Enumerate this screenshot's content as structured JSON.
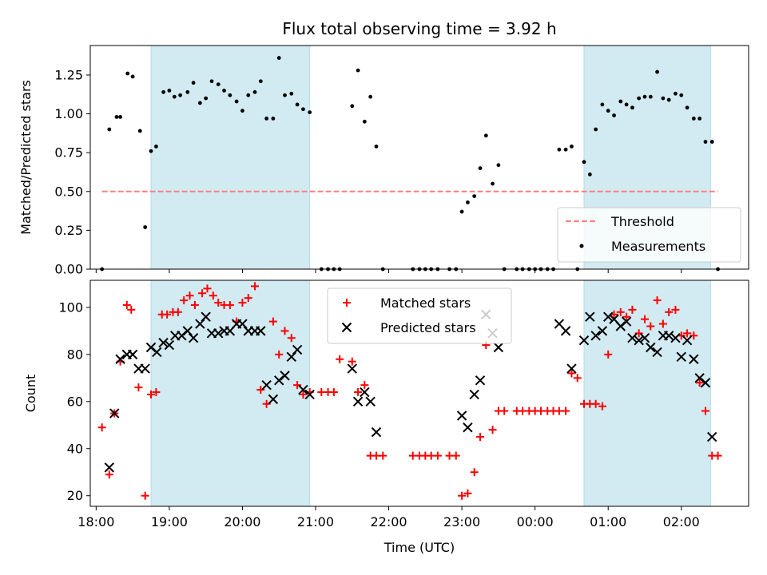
{
  "chart_data": [
    {
      "type": "scatter",
      "title": "Flux total observing time = 3.92 h",
      "xlabel": "",
      "ylabel": "Matched/Predicted stars",
      "x_range_hours": [
        17.92,
        26.92
      ],
      "ylim": [
        0,
        1.44
      ],
      "yticks": [
        0.0,
        0.25,
        0.5,
        0.75,
        1.0,
        1.25
      ],
      "ytick_labels": [
        "0.00",
        "0.25",
        "0.50",
        "0.75",
        "1.00",
        "1.25"
      ],
      "grid": false,
      "legend_position": "lower-right",
      "shaded_intervals": [
        [
          18.75,
          20.92
        ],
        [
          24.67,
          26.4
        ]
      ],
      "shade_color": "#add8e6",
      "threshold": {
        "name": "Threshold",
        "y": 0.5,
        "x_start": 18.08,
        "x_end": 26.5,
        "color": "#ff7f7f"
      },
      "series": [
        {
          "name": "Measurements",
          "marker": "dot",
          "color": "#000000",
          "x": [
            18.08,
            18.18,
            18.28,
            18.33,
            18.43,
            18.5,
            18.6,
            18.67,
            18.75,
            18.82,
            18.92,
            19.0,
            19.07,
            19.15,
            19.25,
            19.33,
            19.42,
            19.5,
            19.58,
            19.67,
            19.75,
            19.83,
            19.92,
            20.0,
            20.08,
            20.17,
            20.25,
            20.33,
            20.42,
            20.5,
            20.58,
            20.67,
            20.75,
            20.83,
            20.92,
            21.08,
            21.17,
            21.25,
            21.33,
            21.5,
            21.58,
            21.67,
            21.75,
            21.83,
            21.92,
            22.33,
            22.42,
            22.5,
            22.58,
            22.67,
            22.83,
            22.92,
            23.0,
            23.08,
            23.17,
            23.25,
            23.33,
            23.42,
            23.5,
            23.58,
            23.75,
            23.83,
            23.92,
            24.0,
            24.08,
            24.17,
            24.25,
            24.33,
            24.42,
            24.5,
            24.58,
            24.67,
            24.75,
            24.83,
            24.92,
            25.0,
            25.08,
            25.17,
            25.25,
            25.33,
            25.42,
            25.5,
            25.58,
            25.67,
            25.75,
            25.83,
            25.92,
            26.0,
            26.08,
            26.17,
            26.25,
            26.33,
            26.42,
            26.5
          ],
          "y": [
            0.0,
            0.9,
            0.98,
            0.98,
            1.26,
            1.24,
            0.89,
            0.27,
            0.76,
            0.79,
            1.14,
            1.15,
            1.11,
            1.12,
            1.14,
            1.2,
            1.07,
            1.1,
            1.21,
            1.19,
            1.15,
            1.12,
            1.08,
            1.02,
            1.12,
            1.14,
            1.21,
            0.97,
            0.97,
            1.36,
            1.12,
            1.13,
            1.06,
            1.03,
            1.01,
            0.0,
            0.0,
            0.0,
            0.0,
            1.05,
            1.28,
            0.95,
            1.11,
            0.79,
            0.0,
            0.0,
            0.0,
            0.0,
            0.0,
            0.0,
            0.0,
            0.0,
            0.37,
            0.43,
            0.47,
            0.65,
            0.86,
            0.55,
            0.67,
            0.0,
            0.0,
            0.0,
            0.0,
            0.0,
            0.0,
            0.0,
            0.0,
            0.77,
            0.77,
            0.79,
            0.0,
            0.69,
            0.61,
            0.9,
            1.06,
            1.02,
            0.99,
            1.08,
            1.06,
            1.04,
            1.1,
            1.11,
            1.11,
            1.27,
            1.1,
            1.09,
            1.13,
            1.12,
            1.04,
            0.97,
            0.97,
            0.82,
            0.82,
            0.0
          ]
        }
      ]
    },
    {
      "type": "scatter",
      "title": "",
      "xlabel": "Time (UTC)",
      "ylabel": "Count",
      "x_range_hours": [
        17.92,
        26.92
      ],
      "ylim": [
        15.5,
        111.5
      ],
      "yticks": [
        20,
        40,
        60,
        80,
        100
      ],
      "ytick_labels": [
        "20",
        "40",
        "60",
        "80",
        "100"
      ],
      "xticks_hours": [
        18,
        19,
        20,
        21,
        22,
        23,
        24,
        25,
        26
      ],
      "xtick_labels": [
        "18:00",
        "19:00",
        "20:00",
        "21:00",
        "22:00",
        "23:00",
        "00:00",
        "01:00",
        "02:00"
      ],
      "grid": false,
      "legend_position": "top-center",
      "shaded_intervals": [
        [
          18.75,
          20.92
        ],
        [
          24.67,
          26.4
        ]
      ],
      "shade_color": "#add8e6",
      "series": [
        {
          "name": "Matched stars",
          "marker": "plus",
          "color": "#ff0000",
          "x": [
            18.08,
            18.18,
            18.25,
            18.33,
            18.42,
            18.48,
            18.58,
            18.67,
            18.75,
            18.82,
            18.9,
            18.97,
            19.05,
            19.12,
            19.2,
            19.28,
            19.35,
            19.45,
            19.52,
            19.6,
            19.67,
            19.75,
            19.83,
            19.92,
            20.0,
            20.08,
            20.17,
            20.25,
            20.33,
            20.42,
            20.5,
            20.58,
            20.67,
            20.75,
            20.83,
            20.92,
            21.08,
            21.17,
            21.25,
            21.33,
            21.5,
            21.58,
            21.67,
            21.75,
            21.83,
            21.92,
            22.33,
            22.42,
            22.5,
            22.58,
            22.67,
            22.83,
            22.92,
            23.0,
            23.08,
            23.17,
            23.25,
            23.33,
            23.42,
            23.5,
            23.58,
            23.75,
            23.83,
            23.92,
            24.0,
            24.08,
            24.17,
            24.25,
            24.33,
            24.42,
            24.5,
            24.58,
            24.67,
            24.75,
            24.83,
            24.92,
            25.0,
            25.08,
            25.17,
            25.25,
            25.33,
            25.42,
            25.5,
            25.58,
            25.67,
            25.75,
            25.83,
            25.92,
            26.0,
            26.08,
            26.17,
            26.25,
            26.33,
            26.42,
            26.5
          ],
          "y": [
            49,
            29,
            55,
            77,
            101,
            99,
            66,
            20,
            63,
            64,
            97,
            97,
            98,
            98,
            103,
            105,
            101,
            106,
            108,
            105,
            102,
            101,
            101,
            94,
            102,
            104,
            109,
            65,
            59,
            94,
            80,
            90,
            87,
            67,
            63,
            64,
            64,
            64,
            64,
            78,
            77,
            64,
            67,
            37,
            37,
            37,
            37,
            37,
            37,
            37,
            37,
            37,
            37,
            20,
            21,
            30,
            45,
            84,
            48,
            56,
            56,
            56,
            56,
            56,
            56,
            56,
            56,
            56,
            56,
            56,
            72,
            70,
            59,
            59,
            59,
            58,
            80,
            97,
            98,
            96,
            99,
            89,
            95,
            92,
            103,
            93,
            98,
            99,
            88,
            89,
            88,
            68,
            56,
            37,
            37
          ]
        },
        {
          "name": "Predicted stars",
          "marker": "x",
          "color": "#000000",
          "x": [
            18.18,
            18.25,
            18.33,
            18.42,
            18.5,
            18.58,
            18.67,
            18.75,
            18.83,
            18.92,
            19.0,
            19.08,
            19.17,
            19.25,
            19.33,
            19.42,
            19.5,
            19.58,
            19.67,
            19.75,
            19.83,
            19.92,
            20.0,
            20.08,
            20.17,
            20.25,
            20.33,
            20.42,
            20.5,
            20.58,
            20.67,
            20.75,
            20.83,
            20.92,
            21.5,
            21.58,
            21.67,
            21.75,
            21.83,
            23.0,
            23.08,
            23.17,
            23.25,
            23.33,
            23.42,
            23.5,
            24.33,
            24.42,
            24.5,
            24.67,
            24.75,
            24.83,
            24.92,
            25.0,
            25.08,
            25.17,
            25.25,
            25.33,
            25.42,
            25.5,
            25.58,
            25.67,
            25.75,
            25.83,
            25.92,
            26.0,
            26.08,
            26.17,
            26.25,
            26.33,
            26.42
          ],
          "y": [
            32,
            55,
            78,
            80,
            80,
            74,
            74,
            83,
            81,
            85,
            84,
            88,
            88,
            90,
            87,
            93,
            96,
            89,
            89,
            90,
            90,
            93,
            93,
            90,
            90,
            90,
            67,
            61,
            69,
            71,
            79,
            82,
            65,
            63,
            74,
            60,
            64,
            60,
            47,
            54,
            49,
            63,
            69,
            97,
            89,
            83,
            93,
            90,
            74,
            86,
            96,
            88,
            90,
            96,
            95,
            92,
            94,
            87,
            86,
            87,
            83,
            81,
            88,
            88,
            87,
            79,
            86,
            78,
            70,
            68,
            45
          ]
        }
      ]
    }
  ]
}
